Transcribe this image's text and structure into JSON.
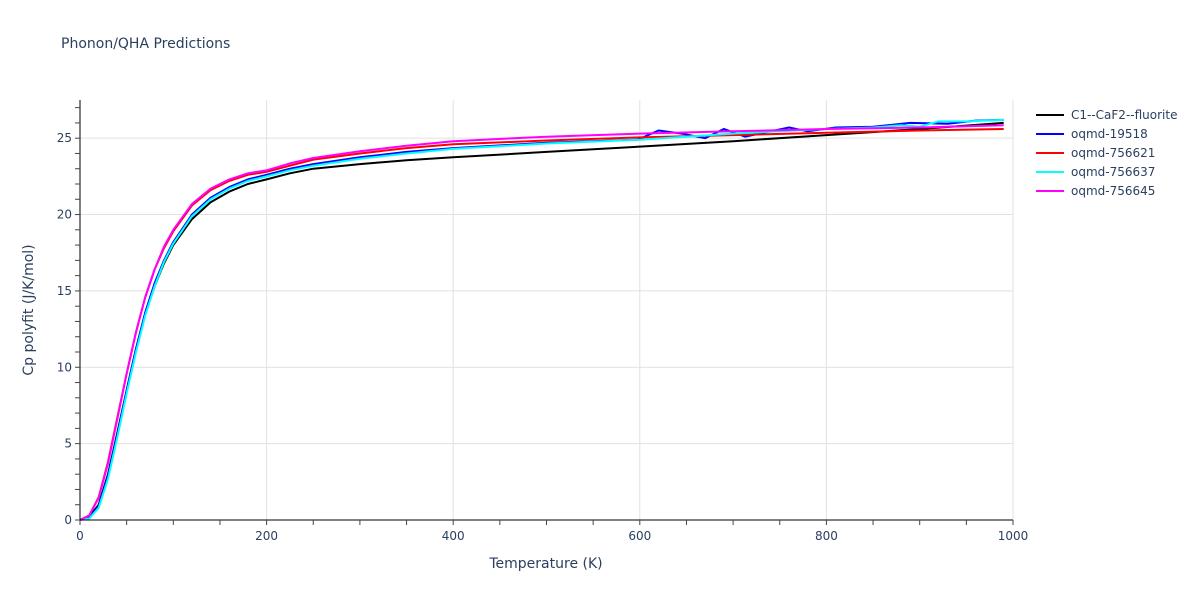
{
  "chart_data": {
    "type": "line",
    "title": "Phonon/QHA Predictions",
    "xlabel": "Temperature (K)",
    "ylabel": "Cp polyfit (J/K/mol)",
    "xlim": [
      0,
      1000
    ],
    "ylim": [
      0,
      27.5
    ],
    "grid": true,
    "legend_position": "right",
    "x_ticks": [
      0,
      200,
      400,
      600,
      800,
      1000
    ],
    "y_ticks": [
      0,
      5,
      10,
      15,
      20,
      25
    ],
    "series": [
      {
        "name": "C1--CaF2--fluorite",
        "color": "#000000",
        "x": [
          0,
          10,
          20,
          30,
          40,
          50,
          60,
          70,
          80,
          90,
          100,
          120,
          140,
          160,
          180,
          200,
          225,
          250,
          300,
          350,
          400,
          500,
          600,
          700,
          800,
          900,
          990
        ],
        "y": [
          0,
          0.2,
          1.0,
          3.0,
          5.7,
          8.5,
          11.2,
          13.5,
          15.3,
          16.8,
          18.0,
          19.7,
          20.8,
          21.5,
          22.0,
          22.3,
          22.7,
          23.0,
          23.3,
          23.55,
          23.75,
          24.1,
          24.45,
          24.8,
          25.2,
          25.6,
          26.0
        ]
      },
      {
        "name": "oqmd-19518",
        "color": "#0000ff",
        "x": [
          0,
          10,
          20,
          30,
          40,
          50,
          60,
          70,
          80,
          90,
          100,
          120,
          140,
          160,
          180,
          200,
          225,
          250,
          300,
          350,
          400,
          500,
          598,
          620,
          645,
          670,
          690,
          713,
          740,
          760,
          780,
          810,
          850,
          890,
          930,
          960,
          990
        ],
        "y": [
          0,
          0.15,
          0.9,
          2.9,
          5.6,
          8.5,
          11.2,
          13.6,
          15.5,
          17.0,
          18.2,
          20.0,
          21.1,
          21.8,
          22.3,
          22.6,
          23.0,
          23.3,
          23.75,
          24.1,
          24.35,
          24.7,
          24.9,
          25.5,
          25.3,
          25.0,
          25.6,
          25.1,
          25.45,
          25.7,
          25.45,
          25.7,
          25.75,
          26.0,
          25.95,
          26.15,
          26.2
        ]
      },
      {
        "name": "oqmd-756621",
        "color": "#ff0000",
        "x": [
          0,
          10,
          20,
          30,
          40,
          50,
          60,
          70,
          80,
          90,
          100,
          120,
          140,
          160,
          180,
          200,
          225,
          250,
          300,
          350,
          400,
          500,
          600,
          700,
          800,
          900,
          990
        ],
        "y": [
          0,
          0.3,
          1.5,
          3.8,
          6.7,
          9.6,
          12.3,
          14.6,
          16.4,
          17.8,
          18.9,
          20.6,
          21.6,
          22.2,
          22.6,
          22.8,
          23.2,
          23.6,
          24.0,
          24.35,
          24.6,
          24.85,
          25.05,
          25.2,
          25.35,
          25.5,
          25.6
        ]
      },
      {
        "name": "oqmd-756637",
        "color": "#00ffff",
        "x": [
          0,
          10,
          20,
          30,
          40,
          50,
          60,
          70,
          80,
          90,
          100,
          120,
          140,
          160,
          180,
          200,
          225,
          250,
          300,
          350,
          400,
          500,
          600,
          700,
          800,
          850,
          880,
          900,
          920,
          950,
          990
        ],
        "y": [
          0,
          0.1,
          0.8,
          2.7,
          5.4,
          8.3,
          11.0,
          13.4,
          15.3,
          16.9,
          18.1,
          19.9,
          21.0,
          21.7,
          22.2,
          22.5,
          22.9,
          23.2,
          23.65,
          24.0,
          24.3,
          24.65,
          24.9,
          25.3,
          25.6,
          25.7,
          25.85,
          25.75,
          26.1,
          26.1,
          26.2
        ]
      },
      {
        "name": "oqmd-756645",
        "color": "#ff00ff",
        "x": [
          0,
          10,
          20,
          30,
          40,
          50,
          60,
          70,
          80,
          90,
          100,
          120,
          140,
          160,
          180,
          200,
          225,
          250,
          300,
          350,
          400,
          500,
          600,
          700,
          800,
          900,
          990
        ],
        "y": [
          0,
          0.3,
          1.45,
          3.7,
          6.6,
          9.6,
          12.3,
          14.6,
          16.4,
          17.9,
          19.0,
          20.7,
          21.7,
          22.3,
          22.7,
          22.9,
          23.35,
          23.7,
          24.15,
          24.5,
          24.8,
          25.1,
          25.3,
          25.45,
          25.6,
          25.7,
          25.85
        ]
      }
    ]
  }
}
